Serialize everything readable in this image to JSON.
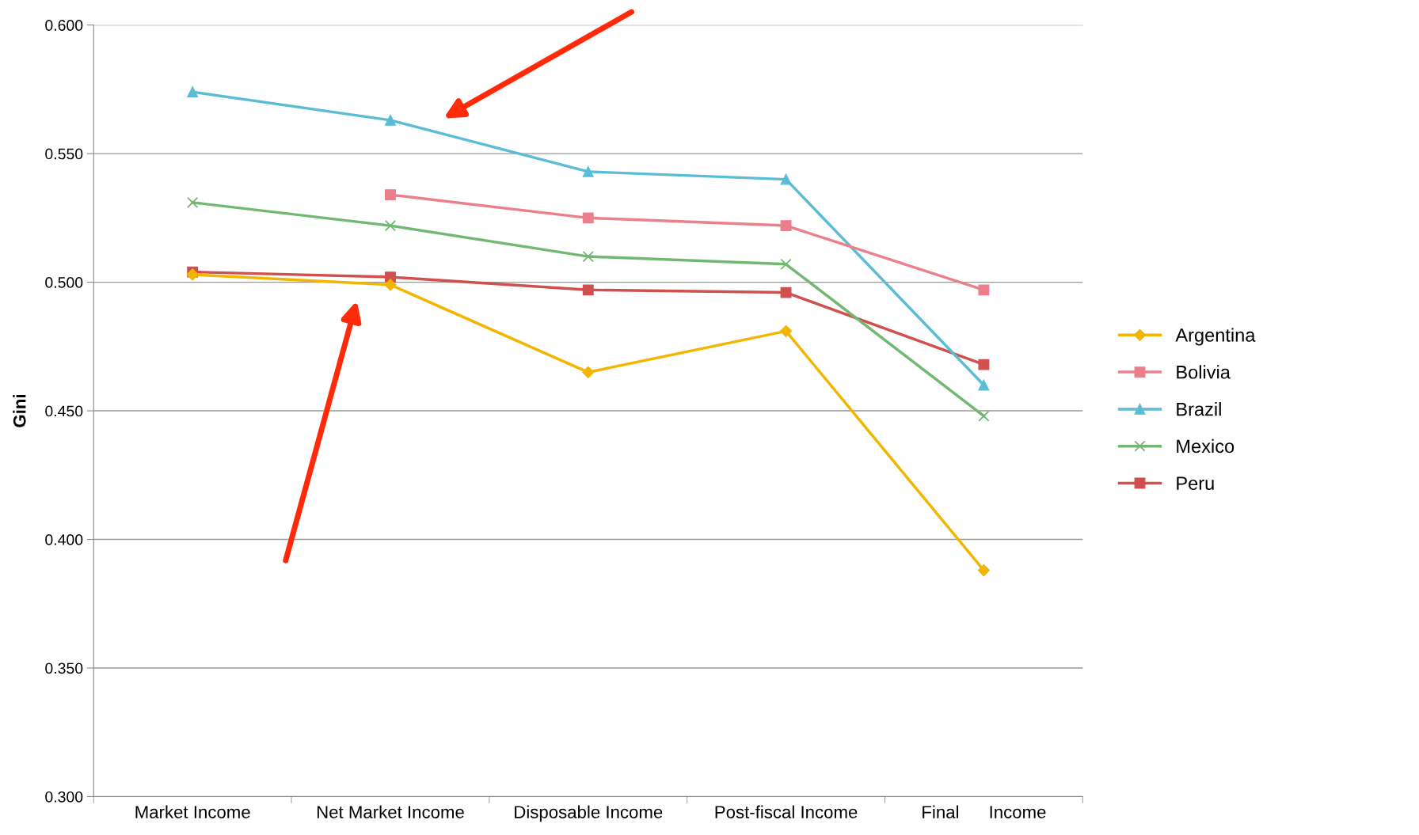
{
  "chart_data": {
    "type": "line",
    "ylabel": "Gini",
    "categories": [
      "Market Income",
      "Net Market Income",
      "Disposable Income",
      "Post-fiscal Income",
      "Final      Income"
    ],
    "series": [
      {
        "name": "Argentina",
        "color": "#f2b600",
        "marker": "diamond",
        "values": [
          0.503,
          0.499,
          0.465,
          0.481,
          0.388
        ]
      },
      {
        "name": "Bolivia",
        "color": "#ec7f8c",
        "marker": "square",
        "values": [
          null,
          0.534,
          0.525,
          0.522,
          0.497
        ]
      },
      {
        "name": "Brazil",
        "color": "#5bbcd6",
        "marker": "triangle",
        "values": [
          0.574,
          0.563,
          0.543,
          0.54,
          0.46
        ]
      },
      {
        "name": "Mexico",
        "color": "#72b872",
        "marker": "cross",
        "values": [
          0.531,
          0.522,
          0.51,
          0.507,
          0.448
        ]
      },
      {
        "name": "Peru",
        "color": "#d0504f",
        "marker": "square",
        "values": [
          0.504,
          0.502,
          0.497,
          0.496,
          0.468
        ]
      }
    ],
    "ylim": [
      0.3,
      0.6
    ],
    "yticks": [
      {
        "value": 0.3,
        "label": "0.300"
      },
      {
        "value": 0.35,
        "label": "0.350"
      },
      {
        "value": 0.4,
        "label": "0.400"
      },
      {
        "value": 0.45,
        "label": "0.450"
      },
      {
        "value": 0.5,
        "label": "0.500"
      },
      {
        "value": 0.55,
        "label": "0.550"
      },
      {
        "value": 0.6,
        "label": "0.600"
      }
    ],
    "grid": "y",
    "legend": "right",
    "line_style": "solid"
  }
}
